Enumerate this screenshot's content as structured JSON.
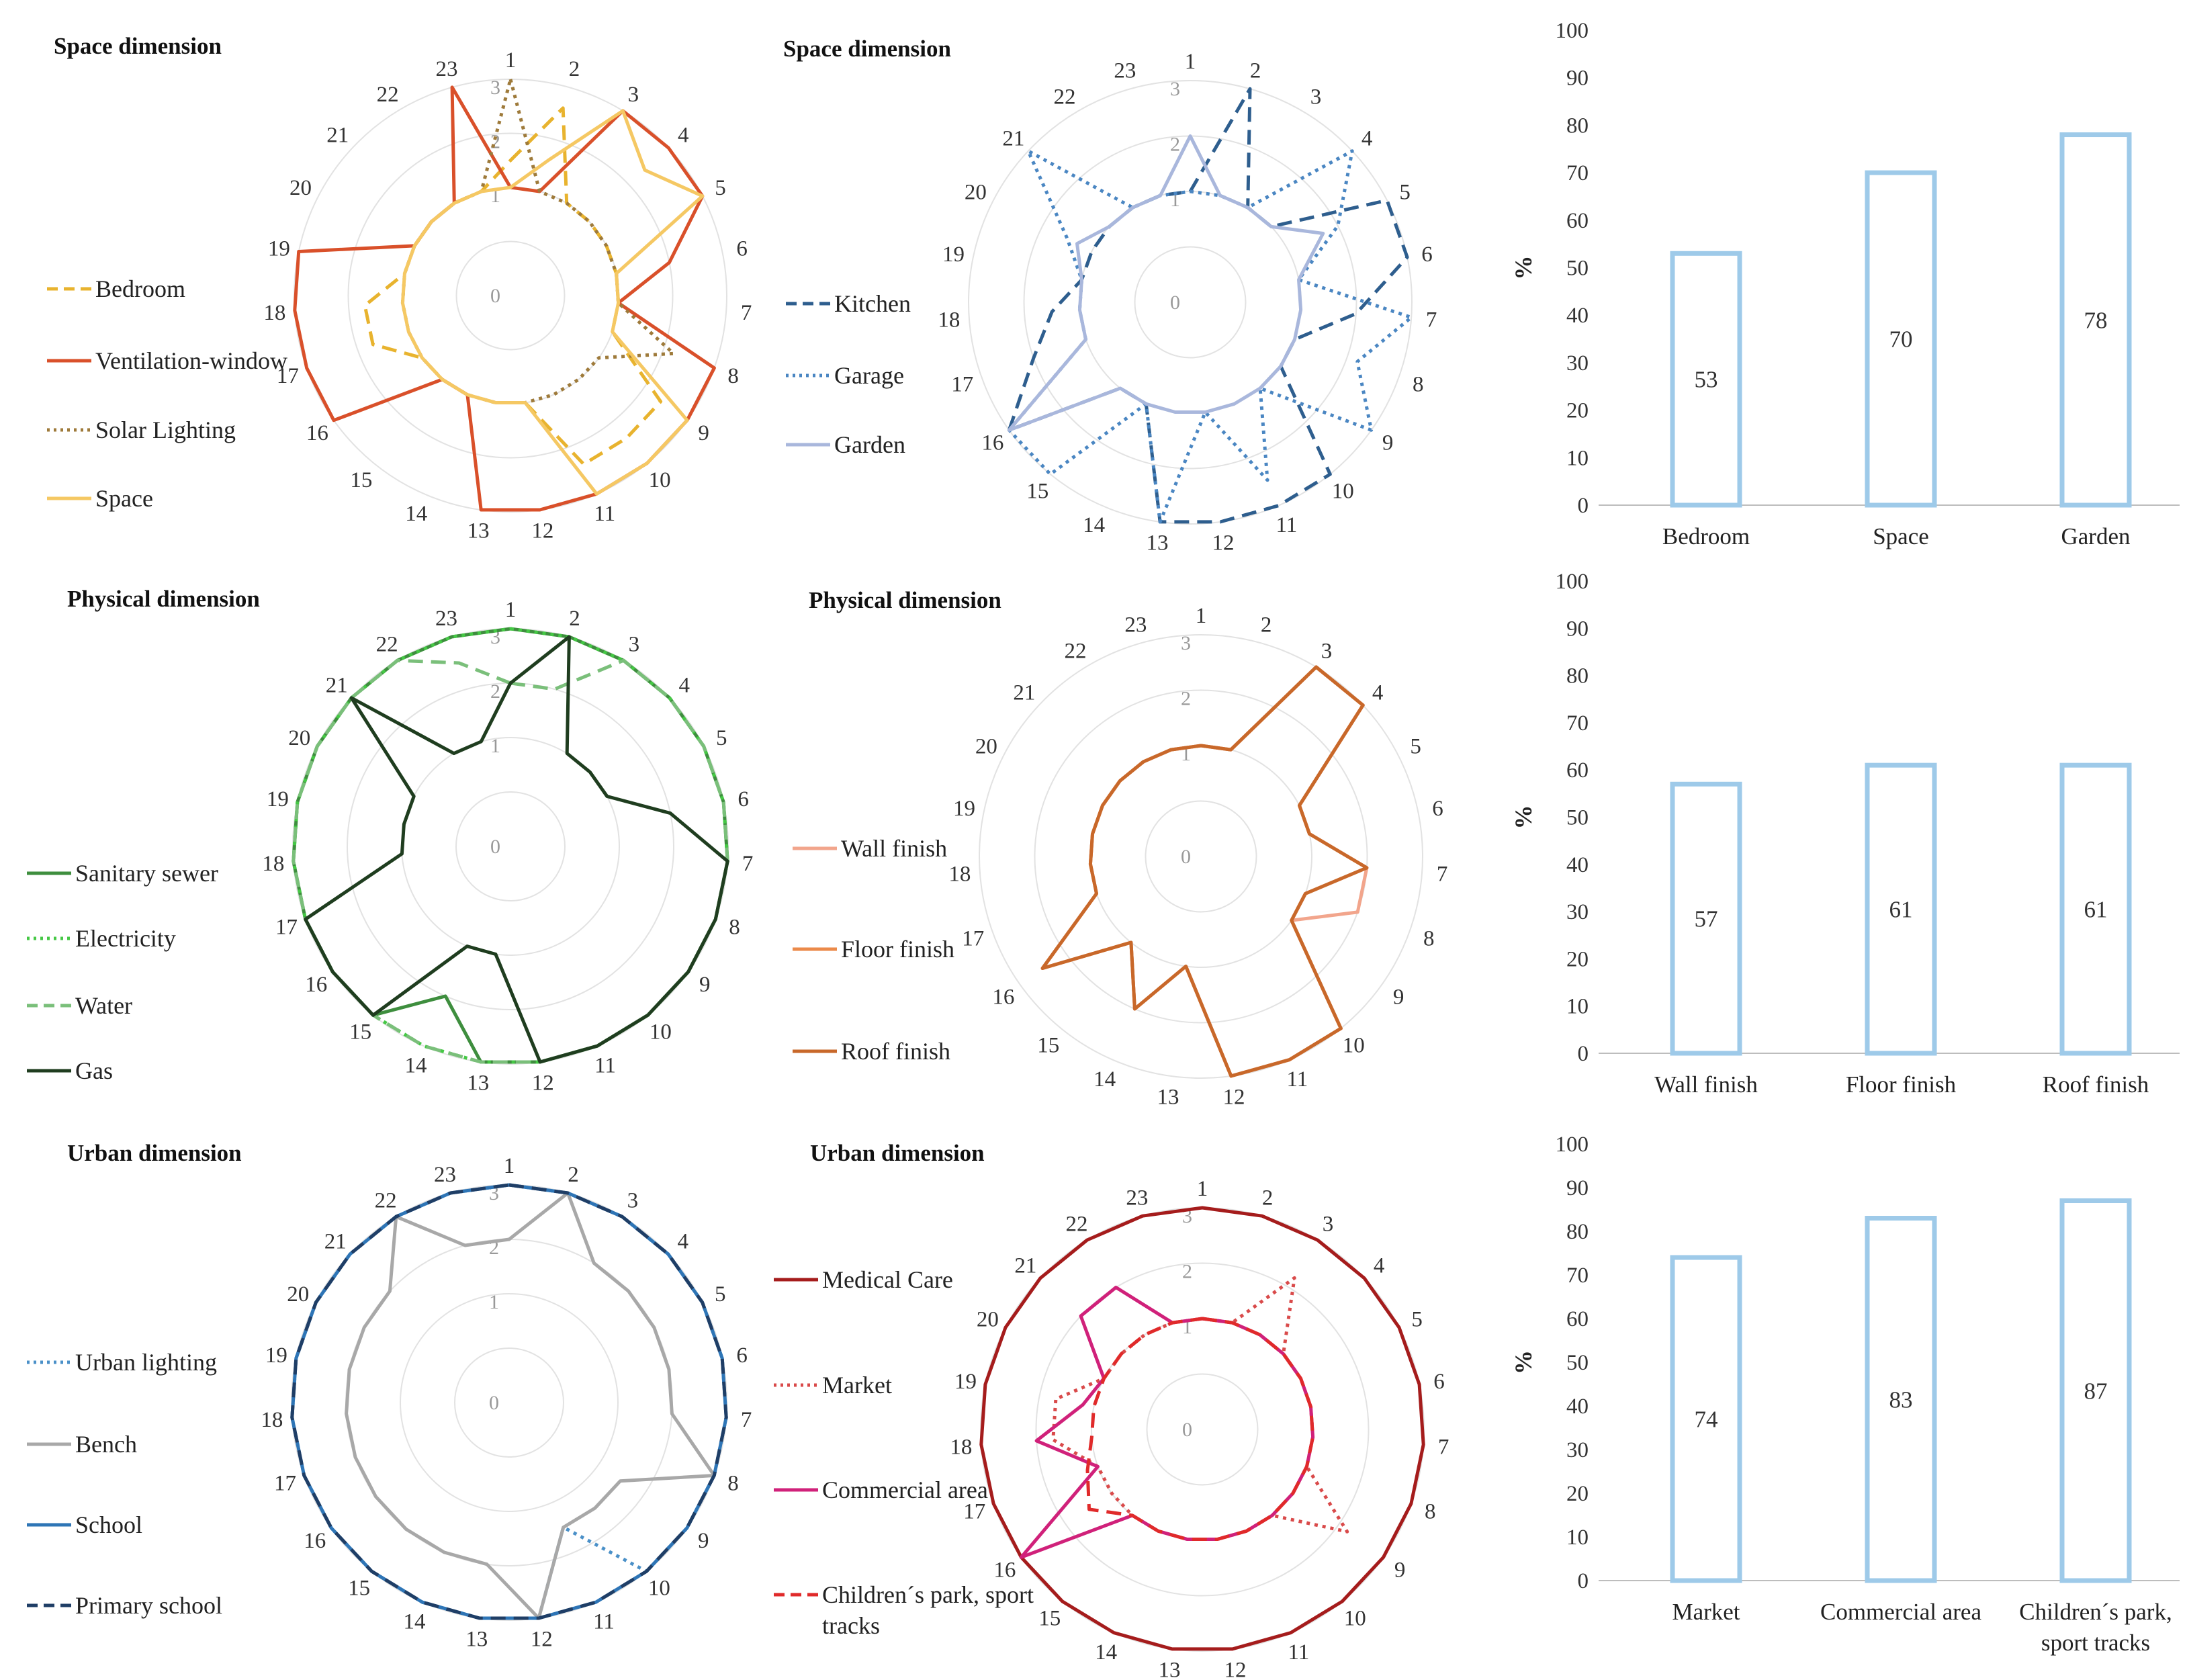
{
  "chart_data": [
    {
      "type": "radar",
      "title": "Space dimension",
      "axis_labels": [
        "1",
        "2",
        "3",
        "4",
        "5",
        "6",
        "7",
        "8",
        "9",
        "10",
        "11",
        "12",
        "13",
        "14",
        "15",
        "16",
        "17",
        "18",
        "19",
        "20",
        "21",
        "22",
        "23"
      ],
      "ring_labels": [
        "0",
        "1",
        "2",
        "3"
      ],
      "range": [
        0,
        3
      ],
      "series": [
        {
          "name": "Bedroom",
          "color": "#E8B32E",
          "dash": "dash",
          "values": [
            1.5,
            2.6,
            1,
            1,
            1,
            1,
            1,
            1,
            2.4,
            2.4,
            2.4,
            1,
            1,
            1,
            1,
            1,
            1.7,
            1.7,
            1,
            1,
            1,
            1,
            1
          ]
        },
        {
          "name": "Ventilation-window",
          "color": "#D9502A",
          "dash": "solid",
          "values": [
            1,
            1,
            3,
            3,
            3,
            2,
            1,
            3,
            3,
            3,
            3,
            3,
            3,
            1,
            1,
            3,
            3,
            3,
            3,
            1,
            1,
            1,
            3
          ]
        },
        {
          "name": "Solar Lighting",
          "color": "#9E7A3A",
          "dash": "dot",
          "values": [
            3,
            1,
            1,
            1,
            1,
            1,
            1,
            2.2,
            1,
            1,
            1,
            1,
            1,
            1,
            1,
            1,
            1,
            1,
            1,
            1,
            1,
            1,
            1
          ]
        },
        {
          "name": "Space",
          "color": "#F5C863",
          "dash": "solid",
          "values": [
            1,
            1.6,
            3,
            2.4,
            3,
            1,
            1,
            1,
            3,
            3,
            3,
            1,
            1,
            1,
            1,
            1,
            1,
            1,
            1,
            1,
            1,
            1,
            1
          ]
        }
      ]
    },
    {
      "type": "radar",
      "title": "Space dimension",
      "axis_labels": [
        "1",
        "2",
        "3",
        "4",
        "5",
        "6",
        "7",
        "8",
        "9",
        "10",
        "11",
        "12",
        "13",
        "14",
        "15",
        "16",
        "17",
        "18",
        "19",
        "20",
        "21",
        "22",
        "23"
      ],
      "ring_labels": [
        "0",
        "1",
        "2",
        "3"
      ],
      "range": [
        0,
        3
      ],
      "series": [
        {
          "name": "Kitchen",
          "color": "#2E5E8E",
          "dash": "dash",
          "values": [
            1,
            3,
            1,
            1,
            3,
            3,
            2,
            1,
            1,
            3,
            3,
            3,
            3,
            1,
            1,
            3,
            2,
            1.5,
            1,
            1,
            1,
            1,
            1
          ]
        },
        {
          "name": "Garage",
          "color": "#4A86C2",
          "dash": "dot",
          "values": [
            1,
            1,
            1,
            3,
            2,
            1,
            3,
            2.2,
            3,
            1,
            2.5,
            1,
            3,
            1,
            3,
            3,
            1,
            1,
            1,
            1.5,
            3,
            1,
            1
          ]
        },
        {
          "name": "Garden",
          "color": "#A9B7DC",
          "dash": "solid",
          "values": [
            2,
            1,
            1,
            1,
            1.7,
            1,
            1,
            1,
            1,
            1,
            1,
            1,
            1,
            1,
            1,
            3,
            1,
            1,
            1,
            1.3,
            1,
            1,
            1
          ]
        }
      ]
    },
    {
      "type": "bar",
      "title": "",
      "categories": [
        "Bedroom",
        "Space",
        "Garden"
      ],
      "values": [
        53,
        70,
        78
      ],
      "ylabel": "%",
      "ylim": [
        0,
        100
      ],
      "yticks": [
        "0",
        "10",
        "20",
        "30",
        "40",
        "50",
        "60",
        "70",
        "80",
        "90",
        "100"
      ]
    },
    {
      "type": "radar",
      "title": "Physical dimension",
      "axis_labels": [
        "1",
        "2",
        "3",
        "4",
        "5",
        "6",
        "7",
        "8",
        "9",
        "10",
        "11",
        "12",
        "13",
        "14",
        "15",
        "16",
        "17",
        "18",
        "19",
        "20",
        "21",
        "22",
        "23"
      ],
      "ring_labels": [
        "0",
        "1",
        "2",
        "3"
      ],
      "range": [
        0,
        3
      ],
      "series": [
        {
          "name": "Sanitary sewer",
          "color": "#3E8E3E",
          "dash": "solid",
          "values": [
            3,
            3,
            3,
            3,
            3,
            3,
            3,
            3,
            3,
            3,
            3,
            3,
            3,
            2,
            3,
            3,
            3,
            3,
            3,
            3,
            3,
            3,
            3
          ]
        },
        {
          "name": "Electricity",
          "color": "#45C845",
          "dash": "dot",
          "values": [
            3,
            3,
            3,
            3,
            3,
            3,
            3,
            3,
            3,
            3,
            3,
            3,
            3,
            3,
            3,
            3,
            3,
            3,
            3,
            3,
            3,
            3,
            3
          ]
        },
        {
          "name": "Water",
          "color": "#7ABF7A",
          "dash": "dash",
          "values": [
            2,
            2,
            3,
            3,
            3,
            3,
            3,
            3,
            3,
            3,
            3,
            3,
            3,
            3,
            3,
            3,
            3,
            3,
            3,
            3,
            3,
            3,
            2.5
          ]
        },
        {
          "name": "Gas",
          "color": "#1F3D1F",
          "dash": "solid",
          "values": [
            2,
            3,
            1,
            1,
            1,
            2,
            3,
            3,
            3,
            3,
            3,
            3,
            1,
            1,
            3,
            3,
            3,
            1,
            1,
            1,
            3,
            1,
            1
          ]
        }
      ]
    },
    {
      "type": "radar",
      "title": "Physical dimension",
      "axis_labels": [
        "1",
        "2",
        "3",
        "4",
        "5",
        "6",
        "7",
        "8",
        "9",
        "10",
        "11",
        "12",
        "13",
        "14",
        "15",
        "16",
        "17",
        "18",
        "19",
        "20",
        "21",
        "22",
        "23"
      ],
      "ring_labels": [
        "0",
        "1",
        "2",
        "3"
      ],
      "range": [
        0,
        3
      ],
      "series": [
        {
          "name": "Wall finish",
          "color": "#F2A58C",
          "dash": "solid",
          "values": [
            1,
            1,
            3,
            3,
            1,
            1,
            2,
            2,
            1,
            3,
            3,
            3,
            1,
            2,
            1,
            2.5,
            1,
            1,
            1,
            1,
            1,
            1,
            1
          ]
        },
        {
          "name": "Floor finish",
          "color": "#EB8A4A",
          "dash": "solid",
          "values": [
            1,
            1,
            3,
            3,
            1,
            1,
            2,
            1,
            1,
            3,
            3,
            3,
            1,
            2,
            1,
            2.5,
            1,
            1,
            1,
            1,
            1,
            1,
            1
          ]
        },
        {
          "name": "Roof finish",
          "color": "#C8682A",
          "dash": "solid",
          "values": [
            1,
            1,
            3,
            3,
            1,
            1,
            2,
            1,
            1,
            3,
            3,
            3,
            1,
            2,
            1,
            2.5,
            1,
            1,
            1,
            1,
            1,
            1,
            1
          ]
        }
      ]
    },
    {
      "type": "bar",
      "title": "",
      "categories": [
        "Wall finish",
        "Floor finish",
        "Roof finish"
      ],
      "values": [
        57,
        61,
        61
      ],
      "ylabel": "%",
      "ylim": [
        0,
        100
      ],
      "yticks": [
        "0",
        "10",
        "20",
        "30",
        "40",
        "50",
        "60",
        "70",
        "80",
        "90",
        "100"
      ]
    },
    {
      "type": "radar",
      "title": "Urban dimension",
      "axis_labels": [
        "1",
        "2",
        "3",
        "4",
        "5",
        "6",
        "7",
        "8",
        "9",
        "10",
        "11",
        "12",
        "13",
        "14",
        "15",
        "16",
        "17",
        "18",
        "19",
        "20",
        "21",
        "22",
        "23"
      ],
      "ring_labels": [
        "0",
        "1",
        "2",
        "3"
      ],
      "range": [
        0,
        3
      ],
      "series": [
        {
          "name": "Urban lighting",
          "color": "#4A90C8",
          "dash": "dot",
          "values": [
            3,
            3,
            3,
            3,
            3,
            3,
            3,
            3,
            3,
            3,
            1.5,
            3,
            3,
            3,
            3,
            3,
            3,
            3,
            3,
            3,
            3,
            3,
            3
          ]
        },
        {
          "name": "Bench",
          "color": "#A8A8A8",
          "dash": "solid",
          "values": [
            2,
            3,
            2,
            2,
            2,
            2,
            2,
            3,
            1.5,
            1.5,
            1.5,
            3,
            2,
            2,
            2,
            2,
            2,
            2,
            2,
            2,
            2,
            3,
            2
          ]
        },
        {
          "name": "School",
          "color": "#2E75B6",
          "dash": "solid",
          "values": [
            3,
            3,
            3,
            3,
            3,
            3,
            3,
            3,
            3,
            3,
            3,
            3,
            3,
            3,
            3,
            3,
            3,
            3,
            3,
            3,
            3,
            3,
            3
          ]
        },
        {
          "name": "Primary school",
          "color": "#1F3E66",
          "dash": "dash",
          "values": [
            3,
            3,
            3,
            3,
            3,
            3,
            3,
            3,
            3,
            3,
            3,
            3,
            3,
            3,
            3,
            3,
            3,
            3,
            3,
            3,
            3,
            3,
            3
          ]
        }
      ]
    },
    {
      "type": "radar",
      "title": "Urban dimension",
      "axis_labels": [
        "1",
        "2",
        "3",
        "4",
        "5",
        "6",
        "7",
        "8",
        "9",
        "10",
        "11",
        "12",
        "13",
        "14",
        "15",
        "16",
        "17",
        "18",
        "19",
        "20",
        "21",
        "22",
        "23"
      ],
      "ring_labels": [
        "0",
        "1",
        "2",
        "3"
      ],
      "range": [
        0,
        3
      ],
      "series": [
        {
          "name": "Medical Care",
          "color": "#A51C1C",
          "dash": "solid",
          "values": [
            3,
            3,
            3,
            3,
            3,
            3,
            3,
            3,
            3,
            3,
            3,
            3,
            3,
            3,
            3,
            3,
            3,
            3,
            3,
            3,
            3,
            3,
            3
          ]
        },
        {
          "name": "Market",
          "color": "#D94A4A",
          "dash": "dot",
          "values": [
            1,
            1,
            2.2,
            1,
            1,
            1,
            1,
            1,
            2.2,
            1,
            1,
            1,
            1,
            1,
            1,
            1,
            1,
            1.7,
            1.7,
            1,
            1,
            1,
            1
          ]
        },
        {
          "name": "Commercial area",
          "color": "#D0217A",
          "dash": "solid",
          "values": [
            1,
            1,
            1,
            1,
            1,
            1,
            1,
            1,
            1,
            1,
            1,
            1,
            1,
            1,
            1,
            3,
            1,
            2,
            1.2,
            1,
            2,
            2,
            1
          ]
        },
        {
          "name": "Children´s park, sport tracks",
          "color": "#E02A2A",
          "dash": "dash",
          "values": [
            1,
            1,
            1,
            1,
            1,
            1,
            1,
            1,
            1,
            1,
            1,
            1,
            1,
            1,
            1,
            1.5,
            1.2,
            1,
            1,
            1,
            1,
            1,
            1
          ]
        }
      ]
    },
    {
      "type": "bar",
      "title": "",
      "categories": [
        "Market",
        "Commercial area",
        "Children´s park, sport tracks"
      ],
      "values": [
        74,
        83,
        87
      ],
      "ylabel": "%",
      "ylim": [
        0,
        100
      ],
      "yticks": [
        "0",
        "10",
        "20",
        "30",
        "40",
        "50",
        "60",
        "70",
        "80",
        "90",
        "100"
      ]
    }
  ]
}
